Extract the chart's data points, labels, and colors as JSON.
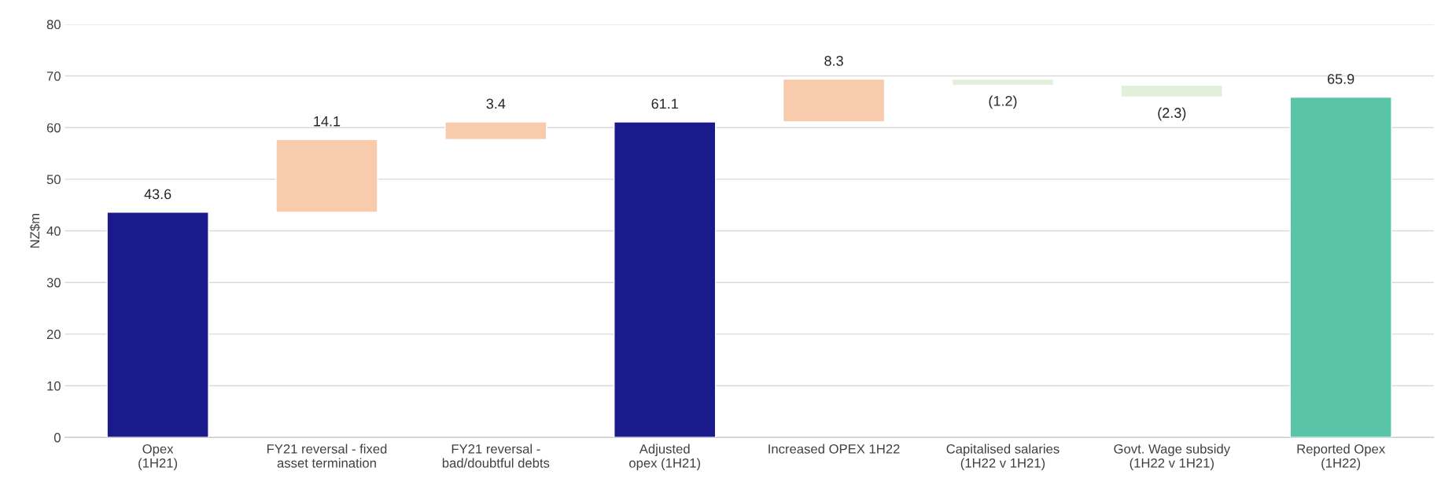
{
  "chart_data": {
    "type": "bar",
    "ylabel": "NZ$m",
    "categories": [
      "Opex\n(1H21)",
      "FY21 reversal - fixed\nasset termination",
      "FY21 reversal -\nbad/doubtful debts",
      "Adjusted\nopex (1H21)",
      "Increased OPEX 1H22",
      "Capitalised salaries\n(1H22 v 1H21)",
      "Govt. Wage subsidy\n(1H22 v 1H21)",
      "Reported Opex\n(1H22)"
    ],
    "values": [
      43.6,
      14.1,
      3.4,
      61.1,
      8.3,
      -1.2,
      -2.3,
      65.9
    ],
    "base": [
      0,
      43.6,
      57.7,
      0,
      61.1,
      69.4,
      68.2,
      0
    ],
    "colors": [
      "#1a1a8c",
      "#f8cbad",
      "#f8cbad",
      "#1a1a8c",
      "#f8cbad",
      "#e2efda",
      "#e2efda",
      "#5ac4a8"
    ],
    "value_labels": [
      "43.6",
      "14.1",
      "3.4",
      "61.1",
      "8.3",
      "(1.2)",
      "(2.3)",
      "65.9"
    ],
    "ylim": [
      0,
      80
    ],
    "yticks": [
      0,
      10,
      20,
      30,
      40,
      50,
      60,
      70,
      80
    ],
    "grid": "y",
    "legend": false
  }
}
